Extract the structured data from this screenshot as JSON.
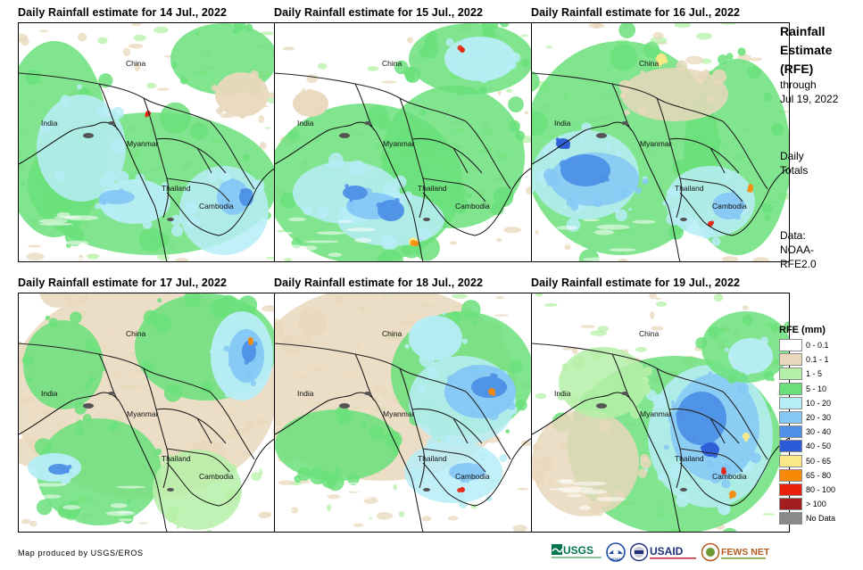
{
  "panels": [
    {
      "title": "Daily Rainfall estimate for 14 Jul., 2022",
      "rain_pattern": "moderate"
    },
    {
      "title": "Daily Rainfall estimate for 15 Jul., 2022",
      "rain_pattern": "heavy"
    },
    {
      "title": "Daily Rainfall estimate for 16 Jul., 2022",
      "rain_pattern": "west"
    },
    {
      "title": "Daily Rainfall estimate for 17 Jul., 2022",
      "rain_pattern": "light"
    },
    {
      "title": "Daily Rainfall estimate for 18 Jul., 2022",
      "rain_pattern": "east"
    },
    {
      "title": "Daily Rainfall estimate for 19 Jul., 2022",
      "rain_pattern": "southeast"
    }
  ],
  "place_labels": {
    "china": "China",
    "india": "India",
    "myanmar": "Myanmar",
    "thailand": "Thailand",
    "cambodia": "Cambodia"
  },
  "sidebar": {
    "title_lines": [
      "Rainfall",
      "Estimate",
      "(RFE)"
    ],
    "through": "through",
    "through_date": "Jul 19, 2022",
    "totals_lines": [
      "Daily",
      "Totals"
    ],
    "data_lines": [
      "Data:",
      "NOAA-",
      "RFE2.0"
    ]
  },
  "legend": {
    "title": "RFE (mm)",
    "items": [
      {
        "label": "0 - 0.1",
        "color": "#ffffff"
      },
      {
        "label": "0.1 - 1",
        "color": "#e9d8bc"
      },
      {
        "label": "1 - 5",
        "color": "#b6f0a8"
      },
      {
        "label": "5 - 10",
        "color": "#6ae07a"
      },
      {
        "label": "10 - 20",
        "color": "#b7edf7"
      },
      {
        "label": "20 - 30",
        "color": "#86c8f5"
      },
      {
        "label": "30 - 40",
        "color": "#4d90e6"
      },
      {
        "label": "40 - 50",
        "color": "#2b5bd6"
      },
      {
        "label": "50 - 65",
        "color": "#fbe987"
      },
      {
        "label": "65 - 80",
        "color": "#f68a08"
      },
      {
        "label": "80 - 100",
        "color": "#e8200c"
      },
      {
        "label": "> 100",
        "color": "#a21d1d"
      },
      {
        "label": "No Data",
        "color": "#8a8a8a"
      }
    ]
  },
  "footer": {
    "credit": "Map produced by USGS/EROS",
    "logos": [
      "USGS",
      "NOAA",
      "USAID",
      "FEWS NET"
    ]
  }
}
